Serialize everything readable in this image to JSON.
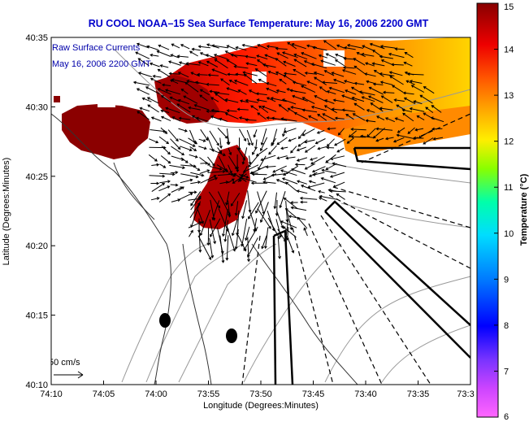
{
  "chart_data": {
    "type": "heatmap",
    "title": "RU COOL   NOAA–15  Sea Surface Temperature:  May 16, 2006 2200 GMT",
    "xlabel": "Longitude (Degrees:Minutes)",
    "ylabel": "Latitude (Degrees:Minutes)",
    "x_ticks": [
      "74:10",
      "74:05",
      "74:00",
      "73:55",
      "73:50",
      "73:45",
      "73:40",
      "73:35",
      "73:3"
    ],
    "y_ticks": [
      "40:35",
      "40:30",
      "40:25",
      "40:20",
      "40:15",
      "40:10"
    ],
    "x_range": [
      -74.1667,
      -73.5
    ],
    "y_range": [
      40.1667,
      40.5833
    ],
    "legend_lines": [
      "Raw Surface Currents",
      "May 16, 2006 2200 GMT"
    ],
    "scale_arrow_label": "50 cm/s",
    "colorbar": {
      "label": "Temperature (°C)",
      "min": 6,
      "max": 15,
      "ticks": [
        "6",
        "7",
        "8",
        "9",
        "10",
        "11",
        "12",
        "13",
        "14",
        "15"
      ]
    },
    "grid": false,
    "colors": {
      "title": "#0000cc",
      "legend_text": "#0000aa",
      "warm": "#8b0000",
      "hot": "#ff2000",
      "mid": "#ff8800",
      "cool": "#ffdd00",
      "land": "#ffffff"
    }
  }
}
